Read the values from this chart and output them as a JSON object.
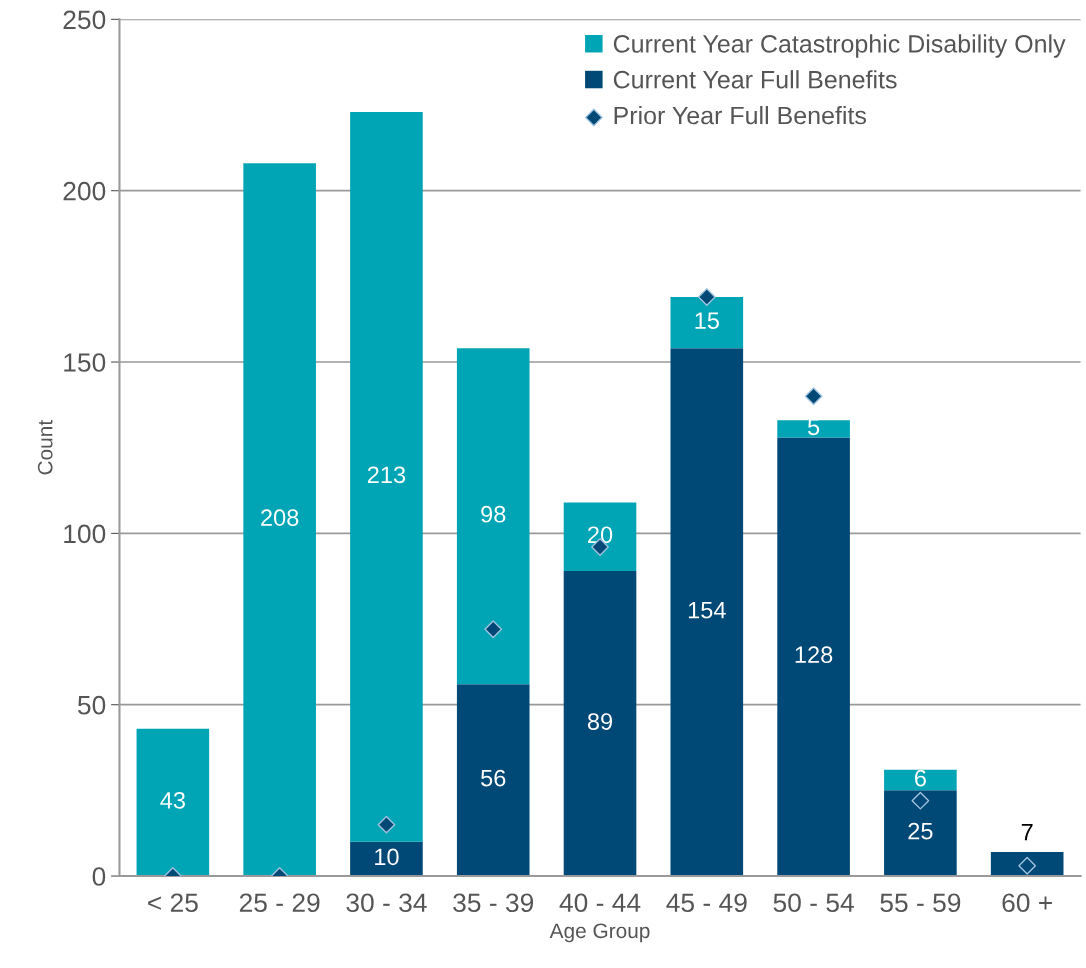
{
  "chart_data": {
    "type": "bar",
    "stacked": true,
    "xlabel": "Age Group",
    "ylabel": "Count",
    "categories": [
      "< 25",
      "25 - 29",
      "30 - 34",
      "35 - 39",
      "40 - 44",
      "45 - 49",
      "50 - 54",
      "55 - 59",
      "60 +"
    ],
    "series": [
      {
        "name": "Current Year Full Benefits",
        "color": "#004875",
        "values": [
          0,
          0,
          10,
          56,
          89,
          154,
          128,
          25,
          7
        ],
        "value_labels": [
          null,
          null,
          "10",
          "56",
          "89",
          "154",
          "128",
          "25",
          "7"
        ]
      },
      {
        "name": "Current Year Catastrophic Disability Only",
        "color": "#00a5b5",
        "values": [
          43,
          208,
          213,
          98,
          20,
          15,
          5,
          6,
          null
        ],
        "value_labels": [
          "43",
          "208",
          "213",
          "98",
          "20",
          "15",
          "5",
          "6",
          null
        ]
      },
      {
        "name": "Prior Year Full Benefits",
        "type": "scatter",
        "marker": "diamond",
        "color": "#004875",
        "x": [
          "< 25",
          "25 - 29",
          "30 - 34",
          "35 - 39",
          "40 - 44",
          "45 - 49",
          "50 - 54",
          "55 - 59",
          "60 +"
        ],
        "values": [
          0,
          0,
          15,
          72,
          96,
          169,
          140,
          22,
          3
        ]
      }
    ],
    "ylim": [
      0,
      250
    ],
    "yticks": [
      0,
      50,
      100,
      150,
      200,
      250
    ],
    "grid": "y",
    "legend": "top right"
  }
}
